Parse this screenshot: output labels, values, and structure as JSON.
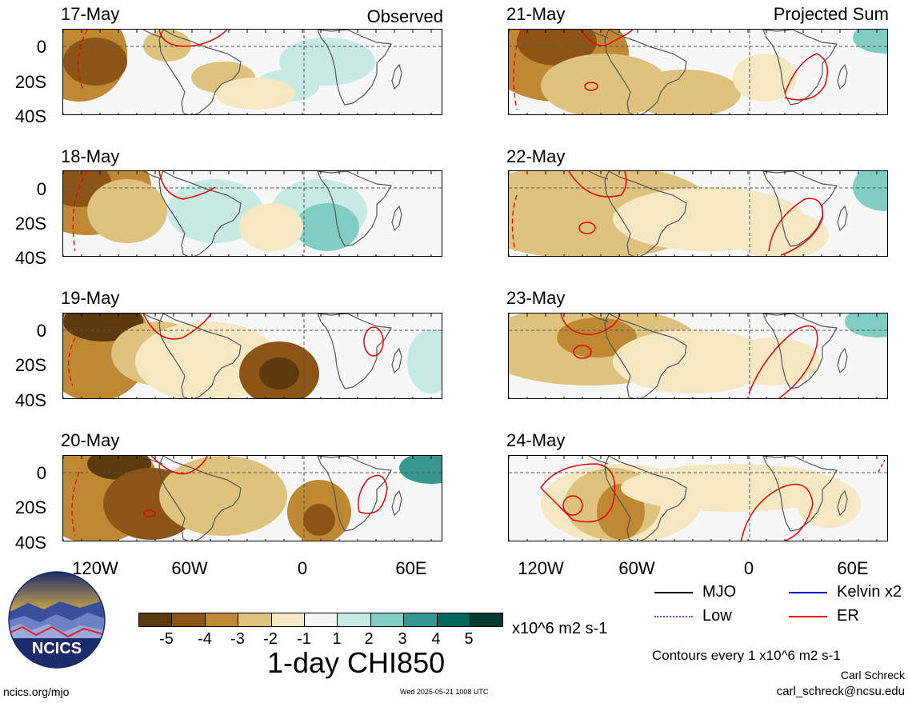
{
  "header": {
    "observed_label": "Observed",
    "projected_label": "Projected Sum"
  },
  "panels": {
    "observed": [
      {
        "date": "17-May"
      },
      {
        "date": "18-May"
      },
      {
        "date": "19-May"
      },
      {
        "date": "20-May"
      }
    ],
    "projected": [
      {
        "date": "21-May"
      },
      {
        "date": "22-May"
      },
      {
        "date": "23-May"
      },
      {
        "date": "24-May"
      }
    ]
  },
  "axes": {
    "lat_ticks": [
      "0",
      "20S",
      "40S"
    ],
    "lon_ticks": [
      "120W",
      "60W",
      "0",
      "60E"
    ]
  },
  "colorbar": {
    "colors": [
      "#5c3a0e",
      "#8c5516",
      "#bf8833",
      "#dfc27d",
      "#f6e8c3",
      "#f5f5f5",
      "#c7eae5",
      "#80cdc1",
      "#35978f",
      "#01665e",
      "#003c30"
    ],
    "tick_labels": [
      "-5",
      "-4",
      "-3",
      "-2",
      "-1",
      "1",
      "2",
      "3",
      "4",
      "5"
    ],
    "units": "x10^6 m2 s-1"
  },
  "title": "1-day CHI850",
  "legend": {
    "items": [
      {
        "label": "MJO",
        "color": "#000000"
      },
      {
        "label": "Kelvin x2",
        "color": "#0000cc"
      },
      {
        "label": "Low",
        "color": "#9933cc"
      },
      {
        "label": "ER",
        "color": "#ee0000"
      }
    ]
  },
  "contour_note": "Contours every 1 x10^6 m2 s-1",
  "logo": {
    "text": "NCICS"
  },
  "footer": {
    "website": "ncics.org/mjo",
    "timestamp": "Wed 2025-05-21 1008 UTC",
    "author": "Carl Schreck",
    "email": "carl_schreck@ncsu.edu"
  }
}
